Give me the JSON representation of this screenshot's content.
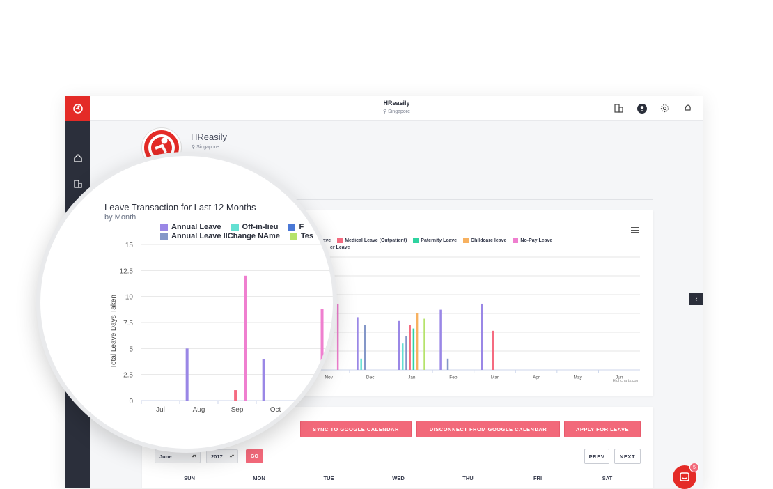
{
  "header": {
    "title": "HReasily",
    "location": "Singapore"
  },
  "company": {
    "name": "HReasily",
    "location": "Singapore"
  },
  "chart_data": {
    "type": "bar",
    "title": "Leave Transaction for Last 12 Months",
    "subtitle": "by Month",
    "ylabel": "Total Leave Days Taken",
    "ylim": [
      0,
      15
    ],
    "yticks": [
      "0",
      "2.5",
      "5",
      "7.5",
      "10",
      "12.5",
      "15"
    ],
    "categories": [
      "Jul",
      "Aug",
      "Sep",
      "Oct",
      "Nov",
      "Dec",
      "Jan",
      "Feb",
      "Mar",
      "Apr",
      "May",
      "Jun"
    ],
    "series": [
      {
        "name": "Annual Leave",
        "color": "#9a87e6",
        "values": [
          0,
          5,
          0,
          4,
          0,
          7,
          6.5,
          8,
          8.8,
          0,
          0,
          0
        ]
      },
      {
        "name": "Off-in-lieu",
        "color": "#63e0d2",
        "values": [
          0,
          0,
          0,
          0,
          0,
          1.5,
          3.5,
          0,
          0,
          0,
          0,
          0
        ]
      },
      {
        "name": "Annual Leave IIChange NAme",
        "color": "#8497c8",
        "values": [
          0,
          0,
          0,
          0,
          0,
          6,
          4.5,
          1.5,
          0,
          0,
          0,
          0
        ]
      },
      {
        "name": "Medical Leave (Outpatient)",
        "color": "#f56b80",
        "values": [
          0,
          0,
          1,
          0,
          0,
          0,
          6,
          0,
          5.2,
          0,
          0,
          0
        ]
      },
      {
        "name": "Paternity Leave",
        "color": "#2fd3a0",
        "values": [
          0,
          0,
          0,
          0,
          0,
          0,
          5.5,
          0,
          0,
          0,
          0,
          0
        ]
      },
      {
        "name": "Childcare leave",
        "color": "#f7b160",
        "values": [
          0,
          0,
          0,
          0,
          0,
          0,
          7.5,
          0,
          0,
          0,
          0,
          0
        ]
      },
      {
        "name": "No-Pay Leave",
        "color": "#ef7fcf",
        "values": [
          0,
          0,
          12,
          0,
          8.8,
          0,
          0,
          0,
          0,
          0,
          0,
          0
        ]
      },
      {
        "name": "Test",
        "color": "#b5e36b",
        "values": [
          0,
          0,
          0,
          0,
          0,
          0,
          6.8,
          0,
          0,
          0,
          0,
          0
        ]
      }
    ],
    "grid": true,
    "legend": "top",
    "credit": "Highcharts.com"
  },
  "legend_partial": {
    "row1": [
      {
        "label": "Annual Leave",
        "color": "#9a87e6"
      },
      {
        "label": "Off-in-lieu",
        "color": "#63e0d2"
      },
      {
        "label": "F",
        "color": "#4a78d6"
      }
    ],
    "row2": [
      {
        "label": "Annual Leave IIChange NAme",
        "color": "#8497c8"
      },
      {
        "label": "Tes",
        "color": "#b5e36b"
      }
    ],
    "small_row1": [
      {
        "label": "tation Sick Leave",
        "color": ""
      },
      {
        "label": "Medical Leave (Outpatient)",
        "color": "#f56b80"
      },
      {
        "label": "Paternity Leave",
        "color": "#2fd3a0"
      },
      {
        "label": "Childcare leave",
        "color": "#f7b160"
      },
      {
        "label": "No-Pay Leave",
        "color": "#ef7fcf"
      }
    ],
    "small_row2": "er Leave"
  },
  "actions": {
    "sync": "SYNC TO GOOGLE CALENDAR",
    "disconnect": "DISCONNECT FROM GOOGLE CALENDAR",
    "apply": "APPLY FOR LEAVE"
  },
  "calendar": {
    "month": "June",
    "year": "2017",
    "go": "GO",
    "prev": "PREV",
    "next": "NEXT",
    "weekdays": [
      "SUN",
      "MON",
      "TUE",
      "WED",
      "THU",
      "FRI",
      "SAT"
    ]
  },
  "chat": {
    "badge": "5"
  },
  "colors": {
    "brand": "#e42b27",
    "button": "#f2697a",
    "sidebar": "#2b2f3b"
  }
}
